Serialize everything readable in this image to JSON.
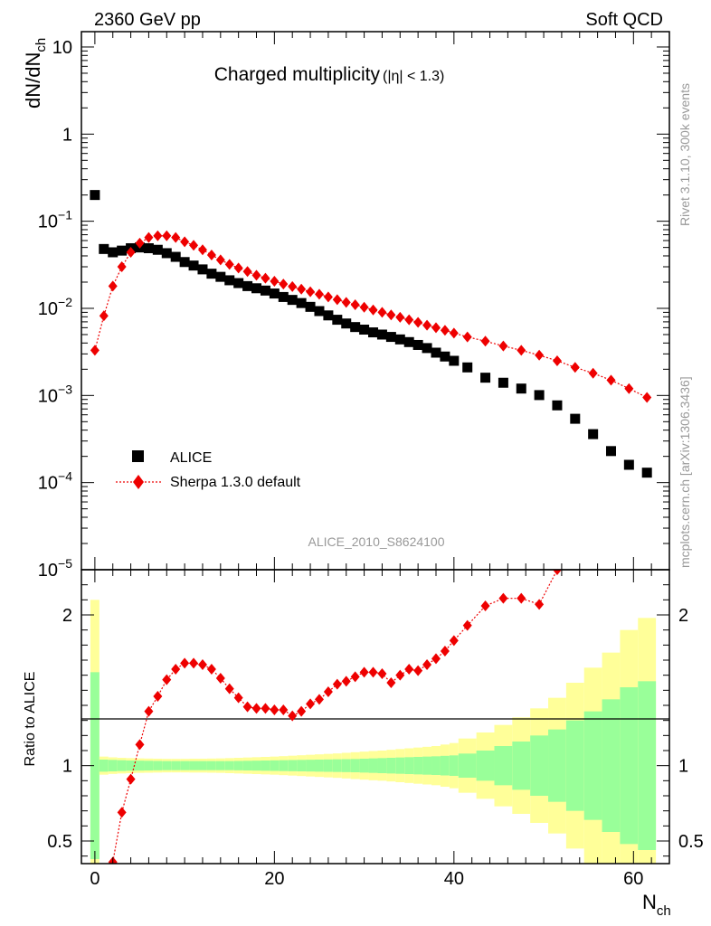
{
  "header": {
    "energy_label": "2360 GeV pp",
    "category_label": "Soft QCD"
  },
  "side_labels": {
    "rivet": "Rivet 3.1.10,  300k events",
    "source": "mcplots.cern.ch [arXiv:1306.3436]"
  },
  "chart_data": {
    "type": "scatter",
    "title": "Charged multiplicity",
    "title_suffix": "(|η| < 1.3)",
    "analysis_id": "ALICE_2010_S8624100",
    "legend_position": "lower-left",
    "main_panel": {
      "y_scale": "log",
      "ylim": [
        1e-05,
        15
      ],
      "ylabel": "dN/dN",
      "ylabel_sub": "ch",
      "y_ticks": [
        {
          "value": 10,
          "base": "10",
          "exp": ""
        },
        {
          "value": 1,
          "base": "1",
          "exp": ""
        },
        {
          "value": 0.1,
          "base": "10",
          "exp": "−1"
        },
        {
          "value": 0.01,
          "base": "10",
          "exp": "−2"
        },
        {
          "value": 0.001,
          "base": "10",
          "exp": "−3"
        },
        {
          "value": 0.0001,
          "base": "10",
          "exp": "−4"
        },
        {
          "value": 1e-05,
          "base": "10",
          "exp": "−5"
        }
      ]
    },
    "ratio_panel": {
      "ylabel": "Ratio to ALICE",
      "ylim": [
        0.35,
        2.3
      ],
      "y_ticks": [
        {
          "value": 2,
          "label": "2"
        },
        {
          "value": 1,
          "label": "1"
        },
        {
          "value": 0.5,
          "label": "0.5"
        }
      ]
    },
    "x_axis": {
      "label": "N",
      "label_sub": "ch",
      "xlim": [
        -1.5,
        64
      ],
      "ticks": [
        0,
        20,
        40,
        60
      ]
    },
    "series": [
      {
        "name": "ALICE",
        "color": "#000000",
        "marker": "square",
        "x": [
          0,
          1,
          2,
          3,
          4,
          5,
          6,
          7,
          8,
          9,
          10,
          11,
          12,
          13,
          14,
          15,
          16,
          17,
          18,
          19,
          20,
          21,
          22,
          23,
          24,
          25,
          26,
          27,
          28,
          29,
          30,
          31,
          32,
          33,
          34,
          35,
          36,
          37,
          38,
          39,
          40,
          41.5,
          43.5,
          45.5,
          47.5,
          49.5,
          51.5,
          53.5,
          55.5,
          57.5,
          59.5,
          61.5
        ],
        "y": [
          0.2,
          0.048,
          0.044,
          0.046,
          0.049,
          0.05,
          0.049,
          0.047,
          0.043,
          0.039,
          0.034,
          0.031,
          0.028,
          0.025,
          0.023,
          0.021,
          0.0195,
          0.018,
          0.017,
          0.016,
          0.0148,
          0.0135,
          0.0125,
          0.0115,
          0.0104,
          0.0093,
          0.0083,
          0.0074,
          0.0067,
          0.0061,
          0.0057,
          0.0053,
          0.005,
          0.0047,
          0.0044,
          0.0041,
          0.0038,
          0.0035,
          0.0031,
          0.0028,
          0.0025,
          0.0021,
          0.0016,
          0.0014,
          0.0012,
          0.00101,
          0.00077,
          0.00054,
          0.00036,
          0.00023,
          0.00016,
          0.00013
        ]
      },
      {
        "name": "Sherpa 1.3.0 default",
        "color": "#ee0000",
        "marker": "diamond",
        "line_style": "dotted",
        "x": [
          0,
          1,
          2,
          3,
          4,
          5,
          6,
          7,
          8,
          9,
          10,
          11,
          12,
          13,
          14,
          15,
          16,
          17,
          18,
          19,
          20,
          21,
          22,
          23,
          24,
          25,
          26,
          27,
          28,
          29,
          30,
          31,
          32,
          33,
          34,
          35,
          36,
          37,
          38,
          39,
          40,
          41.5,
          43.5,
          45.5,
          47.5,
          49.5,
          51.5,
          53.5,
          55.5,
          57.5,
          59.5,
          61.5
        ],
        "y": [
          0.0033,
          0.0082,
          0.018,
          0.03,
          0.044,
          0.056,
          0.065,
          0.068,
          0.068,
          0.065,
          0.058,
          0.053,
          0.047,
          0.041,
          0.036,
          0.032,
          0.029,
          0.0265,
          0.024,
          0.0222,
          0.0205,
          0.019,
          0.0178,
          0.0166,
          0.0155,
          0.0145,
          0.0135,
          0.0126,
          0.0117,
          0.011,
          0.0103,
          0.0096,
          0.009,
          0.0084,
          0.0079,
          0.0074,
          0.0069,
          0.0064,
          0.006,
          0.0056,
          0.0052,
          0.0047,
          0.0042,
          0.0037,
          0.0033,
          0.0029,
          0.0025,
          0.0021,
          0.0018,
          0.0015,
          0.0012,
          0.00095
        ]
      }
    ],
    "ratio": {
      "reference": "ALICE",
      "sherpa_x": [
        2,
        3,
        4,
        5,
        6,
        7,
        8,
        9,
        10,
        11,
        12,
        13,
        14,
        15,
        16,
        17,
        18,
        19,
        20,
        21,
        22,
        23,
        24,
        25,
        26,
        27,
        28,
        29,
        30,
        31,
        32,
        33,
        34,
        35,
        36,
        37,
        38,
        39,
        40,
        41.5,
        43.5,
        45.5,
        47.5,
        49.5,
        51.5
      ],
      "sherpa_y": [
        0.36,
        0.69,
        0.91,
        1.14,
        1.36,
        1.46,
        1.57,
        1.64,
        1.68,
        1.68,
        1.67,
        1.64,
        1.58,
        1.51,
        1.45,
        1.39,
        1.38,
        1.38,
        1.37,
        1.37,
        1.33,
        1.36,
        1.41,
        1.44,
        1.49,
        1.54,
        1.56,
        1.59,
        1.62,
        1.62,
        1.61,
        1.55,
        1.6,
        1.64,
        1.63,
        1.67,
        1.71,
        1.76,
        1.83,
        1.93,
        2.06,
        2.11,
        2.11,
        2.07,
        2.3
      ],
      "band_x_edges": [
        -0.5,
        0.5,
        1.5,
        2.5,
        3.5,
        4.5,
        5.5,
        6.5,
        7.5,
        8.5,
        9.5,
        10.5,
        11.5,
        12.5,
        13.5,
        14.5,
        15.5,
        16.5,
        17.5,
        18.5,
        19.5,
        20.5,
        21.5,
        22.5,
        23.5,
        24.5,
        25.5,
        26.5,
        27.5,
        28.5,
        29.5,
        30.5,
        31.5,
        32.5,
        33.5,
        34.5,
        35.5,
        36.5,
        37.5,
        38.5,
        39.5,
        40.5,
        42.5,
        44.5,
        46.5,
        48.5,
        50.5,
        52.5,
        54.5,
        56.5,
        58.5,
        60.5,
        62.5
      ],
      "stat_band_halfwidth": [
        0.62,
        0.04,
        0.038,
        0.036,
        0.034,
        0.033,
        0.032,
        0.031,
        0.03,
        0.03,
        0.03,
        0.03,
        0.03,
        0.03,
        0.03,
        0.03,
        0.031,
        0.032,
        0.033,
        0.034,
        0.035,
        0.036,
        0.037,
        0.038,
        0.039,
        0.04,
        0.041,
        0.042,
        0.043,
        0.044,
        0.046,
        0.048,
        0.05,
        0.052,
        0.054,
        0.056,
        0.058,
        0.06,
        0.062,
        0.065,
        0.068,
        0.08,
        0.1,
        0.13,
        0.16,
        0.2,
        0.24,
        0.3,
        0.36,
        0.44,
        0.52,
        0.56
      ],
      "total_band_halfwidth": [
        1.1,
        0.06,
        0.055,
        0.052,
        0.05,
        0.048,
        0.047,
        0.046,
        0.045,
        0.045,
        0.045,
        0.046,
        0.046,
        0.047,
        0.048,
        0.05,
        0.052,
        0.054,
        0.056,
        0.058,
        0.06,
        0.063,
        0.066,
        0.069,
        0.072,
        0.075,
        0.078,
        0.081,
        0.085,
        0.089,
        0.093,
        0.097,
        0.1,
        0.105,
        0.11,
        0.115,
        0.12,
        0.125,
        0.13,
        0.14,
        0.15,
        0.18,
        0.22,
        0.27,
        0.32,
        0.38,
        0.45,
        0.55,
        0.65,
        0.75,
        0.9,
        0.98
      ]
    }
  }
}
